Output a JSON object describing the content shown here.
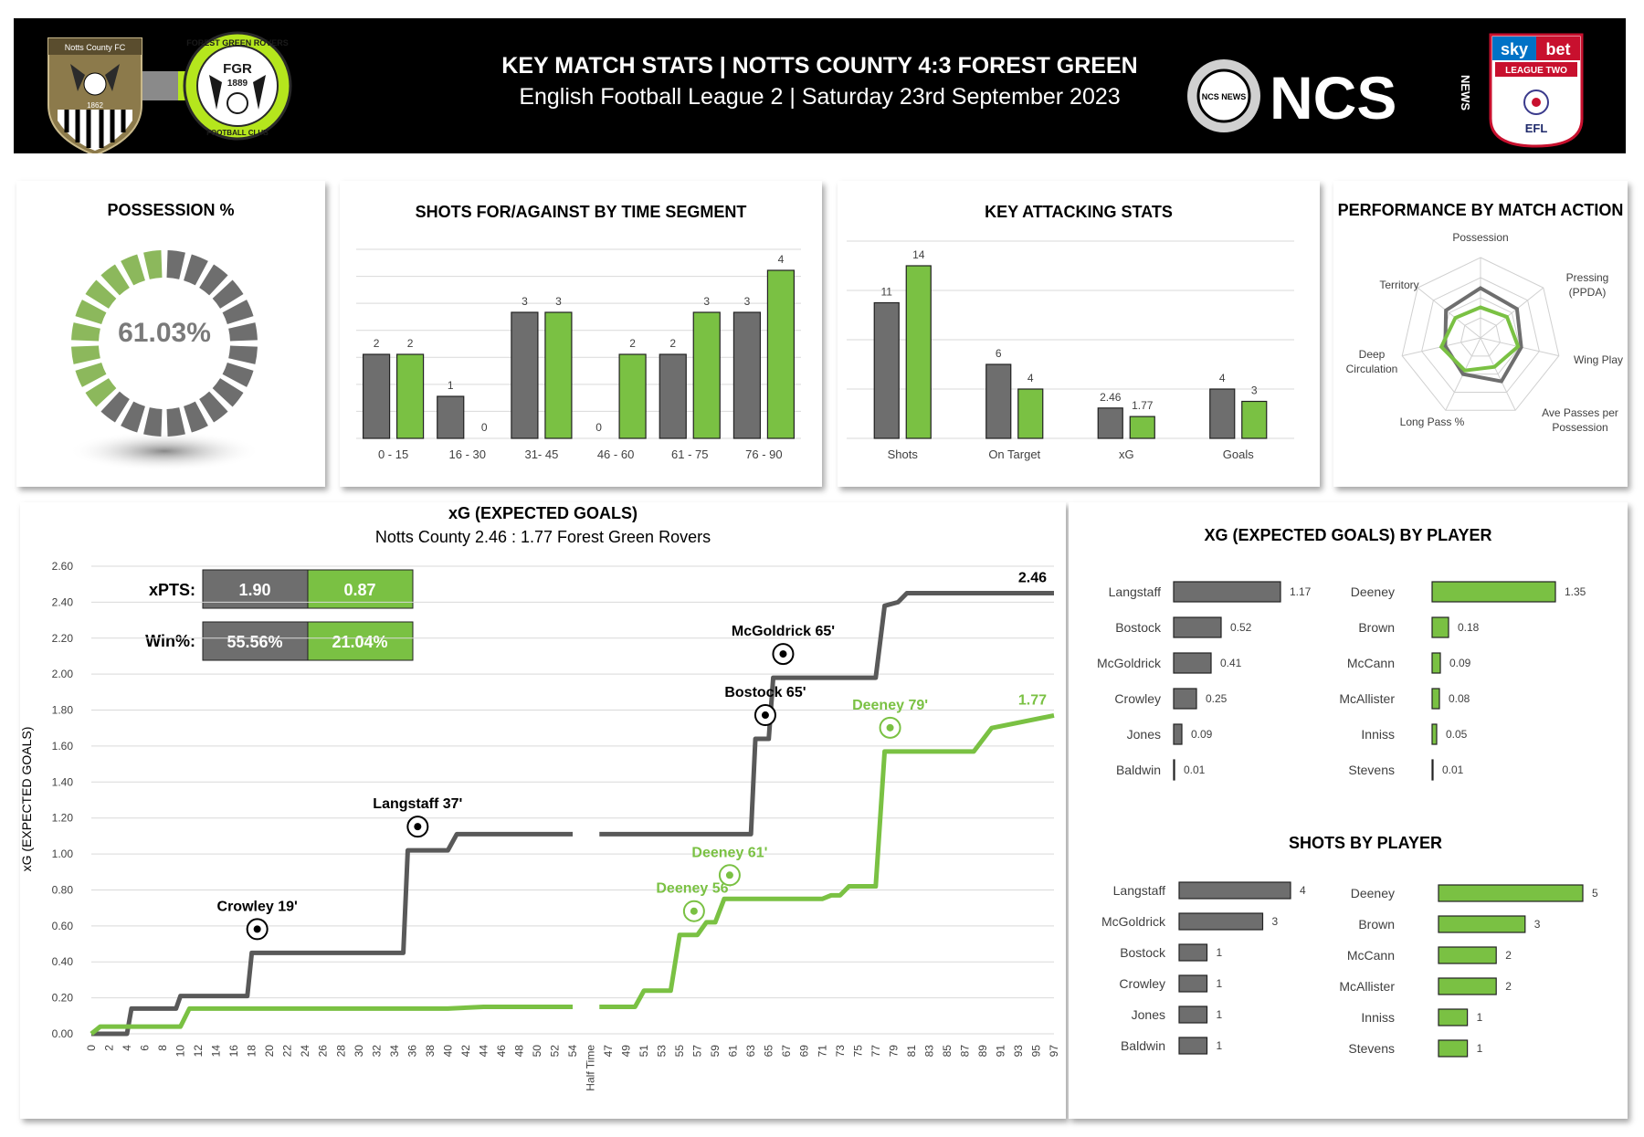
{
  "header": {
    "title": "KEY MATCH STATS | NOTTS COUNTY 4:3 FOREST GREEN",
    "subtitle": "English Football League 2 | Saturday 23rd September 2023",
    "home_badge_text": "Notts County FC",
    "home_badge_year": "1862",
    "away_badge_top": "FOREST GREEN ROVERS",
    "away_badge_initials": "FGR",
    "away_badge_year": "1889",
    "away_badge_bottom": "FOOTBALL CLUB",
    "brand_text": "NCS",
    "brand_side": "NEWS",
    "brand_ball_text": "NCS NEWS",
    "league_logo_sky": "sky",
    "league_logo_bet": "bet",
    "league_logo_name": "LEAGUE TWO",
    "league_logo_efl": "EFL"
  },
  "colors": {
    "home": "#6e6e6e",
    "away": "#7ac143",
    "header_bg": "#000000"
  },
  "chart_data": [
    {
      "type": "pie",
      "title": "POSSESSION %",
      "center_label": "61.03%",
      "slices": [
        {
          "value": 61.03,
          "color": "#6e6e6e"
        },
        {
          "value": 38.97,
          "color": "#8cb85c"
        }
      ]
    },
    {
      "type": "bar",
      "title": "SHOTS FOR/AGAINST BY TIME SEGMENT",
      "categories": [
        "0 - 15",
        "16 - 30",
        "31- 45",
        "46 - 60",
        "61 - 75",
        "76 - 90"
      ],
      "series": [
        {
          "values": [
            2,
            1,
            3,
            0,
            2,
            3
          ],
          "color": "#6e6e6e"
        },
        {
          "values": [
            2,
            0,
            3,
            2,
            3,
            4
          ],
          "color": "#7ac143"
        }
      ],
      "ylim": [
        0,
        4.5
      ],
      "grid": true
    },
    {
      "type": "bar",
      "title": "KEY ATTACKING STATS",
      "categories": [
        "Shots",
        "On Target",
        "xG",
        "Goals"
      ],
      "series": [
        {
          "values": [
            11,
            6,
            2.46,
            4
          ],
          "color": "#6e6e6e"
        },
        {
          "values": [
            14,
            4,
            1.77,
            3
          ],
          "color": "#7ac143"
        }
      ],
      "ylim": [
        0,
        16
      ],
      "grid": true
    },
    {
      "type": "radar",
      "title": "PERFORMANCE BY MATCH ACTION",
      "axes": [
        "Possession",
        "Pressing (PPDA)",
        "Wing Play",
        "Ave Passes per Possession",
        "Long Pass %",
        "Deep Circulation",
        "Territory"
      ],
      "series": [
        {
          "values": [
            0.62,
            0.58,
            0.52,
            0.6,
            0.5,
            0.45,
            0.55
          ],
          "color": "#6e6e6e"
        },
        {
          "values": [
            0.38,
            0.42,
            0.48,
            0.4,
            0.45,
            0.5,
            0.4
          ],
          "color": "#7ac143"
        }
      ]
    },
    {
      "type": "line",
      "title": "xG (EXPECTED GOALS)",
      "subtitle": "Notts County 2.46 : 1.77 Forest Green Rovers",
      "ylabel": "xG (EXPECTED GOALS)",
      "ylim": [
        0,
        2.6
      ],
      "yticks": [
        "0.00",
        "0.20",
        "0.40",
        "0.60",
        "0.80",
        "1.00",
        "1.20",
        "1.40",
        "1.60",
        "1.80",
        "2.00",
        "2.20",
        "2.40",
        "2.60"
      ],
      "xticks": [
        "0",
        "2",
        "4",
        "6",
        "8",
        "10",
        "12",
        "14",
        "16",
        "18",
        "20",
        "22",
        "24",
        "26",
        "28",
        "30",
        "32",
        "34",
        "36",
        "38",
        "40",
        "42",
        "44",
        "46",
        "48",
        "50",
        "52",
        "54",
        "Half Time",
        "47",
        "49",
        "51",
        "53",
        "55",
        "57",
        "59",
        "61",
        "63",
        "65",
        "67",
        "69",
        "71",
        "73",
        "75",
        "77",
        "79",
        "81",
        "83",
        "85",
        "87",
        "89",
        "91",
        "93",
        "95",
        "97"
      ],
      "series": [
        {
          "final_label": "2.46",
          "color": "#595959",
          "first_half": [
            [
              0,
              0
            ],
            [
              4,
              0
            ],
            [
              4.5,
              0.14
            ],
            [
              9.5,
              0.14
            ],
            [
              10,
              0.21
            ],
            [
              17.5,
              0.21
            ],
            [
              18,
              0.45
            ],
            [
              35,
              0.45
            ],
            [
              35.5,
              1.02
            ],
            [
              40,
              1.02
            ],
            [
              41,
              1.11
            ],
            [
              54,
              1.11
            ]
          ],
          "second_half": [
            [
              46,
              1.11
            ],
            [
              63,
              1.11
            ],
            [
              63.5,
              1.64
            ],
            [
              65,
              1.64
            ],
            [
              65.5,
              1.98
            ],
            [
              77,
              1.98
            ],
            [
              78,
              2.38
            ],
            [
              79.5,
              2.4
            ],
            [
              80.5,
              2.45
            ],
            [
              97,
              2.45
            ]
          ]
        },
        {
          "final_label": "1.77",
          "color": "#7ac143",
          "first_half": [
            [
              0,
              0
            ],
            [
              1,
              0.04
            ],
            [
              10,
              0.04
            ],
            [
              11,
              0.14
            ],
            [
              40,
              0.14
            ],
            [
              44,
              0.15
            ],
            [
              54,
              0.15
            ]
          ],
          "second_half": [
            [
              46,
              0.15
            ],
            [
              50,
              0.15
            ],
            [
              51,
              0.24
            ],
            [
              54,
              0.24
            ],
            [
              55,
              0.55
            ],
            [
              57,
              0.55
            ],
            [
              58,
              0.62
            ],
            [
              59,
              0.62
            ],
            [
              60,
              0.75
            ],
            [
              71,
              0.75
            ],
            [
              72,
              0.77
            ],
            [
              73,
              0.77
            ],
            [
              74,
              0.82
            ],
            [
              77,
              0.82
            ],
            [
              78,
              1.57
            ],
            [
              88,
              1.57
            ],
            [
              90,
              1.7
            ],
            [
              97,
              1.77
            ]
          ]
        }
      ],
      "annotations": [
        {
          "text": "Crowley  19'",
          "team": "home",
          "x": 18,
          "y": 0.45
        },
        {
          "text": "Langstaff 37'",
          "team": "home",
          "x": 36,
          "y": 1.02
        },
        {
          "text": "Bostock 65'",
          "team": "home",
          "x": 64,
          "y": 1.64
        },
        {
          "text": "McGoldrick  65'",
          "team": "home",
          "x": 66,
          "y": 1.98
        },
        {
          "text": "Deeney 56'",
          "team": "away",
          "x": 56,
          "y": 0.55
        },
        {
          "text": "Deeney 61'",
          "team": "away",
          "x": 60,
          "y": 0.75
        },
        {
          "text": "Deeney 79'",
          "team": "away",
          "x": 78,
          "y": 1.57
        }
      ],
      "xpts": {
        "label": "xPTS:",
        "home": "1.90",
        "away": "0.87"
      },
      "winpct": {
        "label": "Win%:",
        "home": "55.56%",
        "away": "21.04%"
      }
    },
    {
      "type": "bar",
      "orientation": "horizontal",
      "title": "XG (EXPECTED GOALS) BY PLAYER",
      "groups": [
        {
          "color": "#6e6e6e",
          "categories": [
            "Langstaff",
            "Bostock",
            "McGoldrick",
            "Crowley",
            "Jones",
            "Baldwin"
          ],
          "values": [
            1.17,
            0.52,
            0.41,
            0.25,
            0.09,
            0.01
          ],
          "labels": [
            "1.17",
            "0.52",
            "0.41",
            "0.25",
            "0.09",
            "0.01"
          ],
          "max": 1.17
        },
        {
          "color": "#7ac143",
          "categories": [
            "Deeney",
            "Brown",
            "McCann",
            "McAllister",
            "Inniss",
            "Stevens"
          ],
          "values": [
            1.35,
            0.18,
            0.09,
            0.08,
            0.05,
            0.01
          ],
          "labels": [
            "1.35",
            "0.18",
            "0.09",
            "0.08",
            "0.05",
            "0.01"
          ],
          "max": 1.35
        }
      ]
    },
    {
      "type": "bar",
      "orientation": "horizontal",
      "title": "SHOTS BY PLAYER",
      "groups": [
        {
          "color": "#6e6e6e",
          "categories": [
            "Langstaff",
            "McGoldrick",
            "Bostock",
            "Crowley",
            "Jones",
            "Baldwin"
          ],
          "values": [
            4,
            3,
            1,
            1,
            1,
            1
          ],
          "labels": [
            "4",
            "3",
            "1",
            "1",
            "1",
            "1"
          ],
          "max": 4
        },
        {
          "color": "#7ac143",
          "categories": [
            "Deeney",
            "Brown",
            "McCann",
            "McAllister",
            "Inniss",
            "Stevens"
          ],
          "values": [
            5,
            3,
            2,
            2,
            1,
            1
          ],
          "labels": [
            "5",
            "3",
            "2",
            "2",
            "1",
            "1"
          ],
          "max": 5
        }
      ]
    }
  ]
}
